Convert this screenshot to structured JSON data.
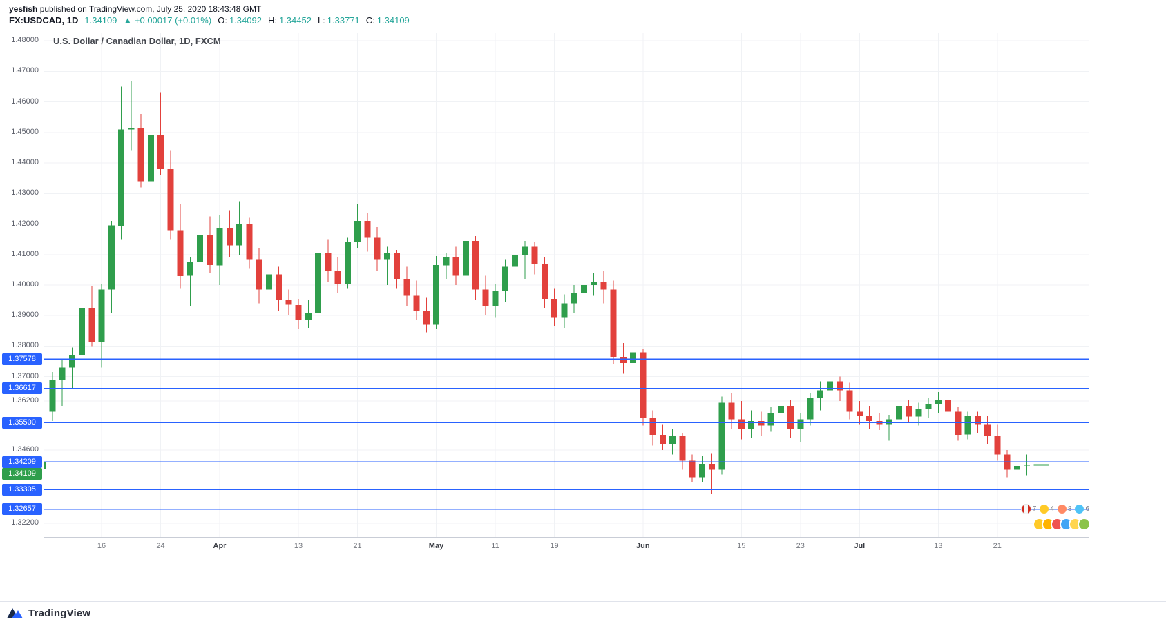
{
  "header": {
    "author": "yesfish",
    "published": " published on TradingView.com, July 25, 2020 18:43:48 GMT",
    "symbol": "FX:USDCAD, 1D",
    "last_price": "1.34109",
    "change": "▲ +0.00017 (+0.01%)",
    "ohlc": {
      "o_label": "O:",
      "o_value": "1.34092",
      "h_label": "H:",
      "h_value": "1.34452",
      "l_label": "L:",
      "l_value": "1.33771",
      "c_label": "C:",
      "c_value": "1.34109"
    }
  },
  "chart": {
    "title": "U.S. Dollar / Canadian Dollar, 1D, FXCM"
  },
  "chart_data": {
    "type": "candlestick",
    "symbol": "FX:USDCAD",
    "interval": "1D",
    "exchange": "FXCM",
    "title": "U.S. Dollar / Canadian Dollar, 1D, FXCM",
    "colors": {
      "up": "#2f9e4c",
      "down": "#e2413c",
      "level": "#2962ff",
      "level_label_bg": "#2962ff",
      "last_price_bg": "#2f9e4c",
      "grid": "#f0f2f5",
      "axis_text": "#5d606b"
    },
    "axis": {
      "price_top": 1.4825,
      "price_bottom": 1.3175,
      "grid": true
    },
    "y_labels": [
      {
        "label": "1.48000",
        "price": 1.48
      },
      {
        "label": "1.47000",
        "price": 1.47
      },
      {
        "label": "1.46000",
        "price": 1.46
      },
      {
        "label": "1.45000",
        "price": 1.45
      },
      {
        "label": "1.44000",
        "price": 1.44
      },
      {
        "label": "1.43000",
        "price": 1.43
      },
      {
        "label": "1.42000",
        "price": 1.42
      },
      {
        "label": "1.41000",
        "price": 1.41
      },
      {
        "label": "1.40000",
        "price": 1.4
      },
      {
        "label": "1.39000",
        "price": 1.39
      },
      {
        "label": "1.38000",
        "price": 1.38
      },
      {
        "label": "1.37000",
        "price": 1.37
      },
      {
        "label": "1.36200",
        "price": 1.362
      },
      {
        "label": "1.34600",
        "price": 1.346
      },
      {
        "label": "1.32200",
        "price": 1.322
      }
    ],
    "x_ticks": [
      {
        "index": 6,
        "label": "16"
      },
      {
        "index": 12,
        "label": "24"
      },
      {
        "index": 18,
        "label": "Apr",
        "month": true
      },
      {
        "index": 26,
        "label": "13"
      },
      {
        "index": 32,
        "label": "21"
      },
      {
        "index": 40,
        "label": "May",
        "month": true
      },
      {
        "index": 46,
        "label": "11"
      },
      {
        "index": 52,
        "label": "19"
      },
      {
        "index": 61,
        "label": "Jun",
        "month": true
      },
      {
        "index": 71,
        "label": "15"
      },
      {
        "index": 77,
        "label": "23"
      },
      {
        "index": 83,
        "label": "Jul",
        "month": true
      },
      {
        "index": 91,
        "label": "13"
      },
      {
        "index": 97,
        "label": "21"
      }
    ],
    "levels": [
      {
        "price": 1.37578,
        "label": "1.37578"
      },
      {
        "price": 1.36617,
        "label": "1.36617"
      },
      {
        "price": 1.355,
        "label": "1.35500"
      },
      {
        "price": 1.34209,
        "label": "1.34209"
      },
      {
        "price": 1.33305,
        "label": "1.33305"
      },
      {
        "price": 1.32657,
        "label": "1.32657"
      }
    ],
    "last_price": {
      "price": 1.34109,
      "label": "1.34109",
      "dy": 13
    },
    "candles": [
      [
        "2020-03-06",
        1.3398,
        1.3452,
        1.3365,
        1.3422
      ],
      [
        "2020-03-09",
        1.3585,
        1.3715,
        1.3555,
        1.369
      ],
      [
        "2020-03-10",
        1.369,
        1.3755,
        1.3605,
        1.373
      ],
      [
        "2020-03-11",
        1.373,
        1.3795,
        1.366,
        1.377
      ],
      [
        "2020-03-12",
        1.377,
        1.395,
        1.373,
        1.3925
      ],
      [
        "2020-03-13",
        1.3925,
        1.3995,
        1.38,
        1.3815
      ],
      [
        "2020-03-16",
        1.3815,
        1.4005,
        1.373,
        1.3985
      ],
      [
        "2020-03-17",
        1.3985,
        1.421,
        1.391,
        1.4195
      ],
      [
        "2020-03-18",
        1.4195,
        1.465,
        1.415,
        1.451
      ],
      [
        "2020-03-19",
        1.451,
        1.4668,
        1.444,
        1.4515
      ],
      [
        "2020-03-20",
        1.4515,
        1.456,
        1.432,
        1.434
      ],
      [
        "2020-03-23",
        1.434,
        1.453,
        1.43,
        1.449
      ],
      [
        "2020-03-24",
        1.449,
        1.463,
        1.436,
        1.438
      ],
      [
        "2020-03-25",
        1.438,
        1.444,
        1.415,
        1.418
      ],
      [
        "2020-03-26",
        1.418,
        1.4265,
        1.399,
        1.403
      ],
      [
        "2020-03-27",
        1.403,
        1.409,
        1.393,
        1.4075
      ],
      [
        "2020-03-30",
        1.4075,
        1.419,
        1.401,
        1.4165
      ],
      [
        "2020-03-31",
        1.4165,
        1.4225,
        1.404,
        1.4065
      ],
      [
        "2020-04-01",
        1.4065,
        1.423,
        1.4,
        1.4185
      ],
      [
        "2020-04-02",
        1.4185,
        1.4245,
        1.409,
        1.413
      ],
      [
        "2020-04-03",
        1.413,
        1.4275,
        1.41,
        1.42
      ],
      [
        "2020-04-06",
        1.42,
        1.422,
        1.4055,
        1.4085
      ],
      [
        "2020-04-07",
        1.4085,
        1.412,
        1.394,
        1.3985
      ],
      [
        "2020-04-08",
        1.3985,
        1.4075,
        1.3945,
        1.4035
      ],
      [
        "2020-04-09",
        1.4035,
        1.406,
        1.3915,
        1.395
      ],
      [
        "2020-04-10",
        1.395,
        1.3985,
        1.39,
        1.3935
      ],
      [
        "2020-04-13",
        1.3935,
        1.3955,
        1.3855,
        1.3885
      ],
      [
        "2020-04-14",
        1.3885,
        1.395,
        1.386,
        1.391
      ],
      [
        "2020-04-15",
        1.391,
        1.4125,
        1.3885,
        1.4105
      ],
      [
        "2020-04-16",
        1.4105,
        1.415,
        1.401,
        1.4045
      ],
      [
        "2020-04-17",
        1.4045,
        1.409,
        1.3975,
        1.4005
      ],
      [
        "2020-04-20",
        1.4005,
        1.4155,
        1.399,
        1.414
      ],
      [
        "2020-04-21",
        1.414,
        1.4265,
        1.412,
        1.421
      ],
      [
        "2020-04-22",
        1.421,
        1.4235,
        1.411,
        1.4155
      ],
      [
        "2020-04-23",
        1.4155,
        1.419,
        1.4045,
        1.4085
      ],
      [
        "2020-04-24",
        1.4085,
        1.4125,
        1.4,
        1.4105
      ],
      [
        "2020-04-27",
        1.4105,
        1.4115,
        1.399,
        1.402
      ],
      [
        "2020-04-28",
        1.402,
        1.406,
        1.393,
        1.3965
      ],
      [
        "2020-04-29",
        1.3965,
        1.4015,
        1.3885,
        1.3915
      ],
      [
        "2020-04-30",
        1.3915,
        1.396,
        1.3845,
        1.387
      ],
      [
        "2020-05-01",
        1.387,
        1.4095,
        1.3855,
        1.4065
      ],
      [
        "2020-05-04",
        1.4065,
        1.4105,
        1.402,
        1.409
      ],
      [
        "2020-05-05",
        1.409,
        1.4125,
        1.4,
        1.403
      ],
      [
        "2020-05-06",
        1.403,
        1.4175,
        1.4015,
        1.4145
      ],
      [
        "2020-05-07",
        1.4145,
        1.416,
        1.395,
        1.3985
      ],
      [
        "2020-05-08",
        1.3985,
        1.403,
        1.39,
        1.393
      ],
      [
        "2020-05-11",
        1.393,
        1.4005,
        1.3895,
        1.398
      ],
      [
        "2020-05-12",
        1.398,
        1.4085,
        1.3945,
        1.406
      ],
      [
        "2020-05-13",
        1.406,
        1.412,
        1.3995,
        1.41
      ],
      [
        "2020-05-14",
        1.41,
        1.4145,
        1.402,
        1.4125
      ],
      [
        "2020-05-15",
        1.4125,
        1.414,
        1.4035,
        1.407
      ],
      [
        "2020-05-18",
        1.407,
        1.409,
        1.3925,
        1.3955
      ],
      [
        "2020-05-19",
        1.3955,
        1.399,
        1.3865,
        1.3895
      ],
      [
        "2020-05-20",
        1.3895,
        1.397,
        1.386,
        1.394
      ],
      [
        "2020-05-21",
        1.394,
        1.4,
        1.391,
        1.3975
      ],
      [
        "2020-05-22",
        1.3975,
        1.405,
        1.3945,
        1.4
      ],
      [
        "2020-05-25",
        1.4,
        1.404,
        1.3965,
        1.401
      ],
      [
        "2020-05-26",
        1.401,
        1.4045,
        1.394,
        1.3985
      ],
      [
        "2020-05-27",
        1.3985,
        1.4015,
        1.374,
        1.3765
      ],
      [
        "2020-05-28",
        1.3765,
        1.381,
        1.371,
        1.3745
      ],
      [
        "2020-05-29",
        1.3745,
        1.38,
        1.372,
        1.378
      ],
      [
        "2020-06-01",
        1.378,
        1.379,
        1.354,
        1.3565
      ],
      [
        "2020-06-02",
        1.3565,
        1.359,
        1.3475,
        1.351
      ],
      [
        "2020-06-03",
        1.351,
        1.3545,
        1.346,
        1.348
      ],
      [
        "2020-06-04",
        1.348,
        1.353,
        1.3445,
        1.3505
      ],
      [
        "2020-06-05",
        1.3505,
        1.3515,
        1.3395,
        1.3425
      ],
      [
        "2020-06-08",
        1.3425,
        1.3445,
        1.3355,
        1.337
      ],
      [
        "2020-06-09",
        1.337,
        1.344,
        1.3355,
        1.3415
      ],
      [
        "2020-06-10",
        1.3415,
        1.345,
        1.3315,
        1.3395
      ],
      [
        "2020-06-11",
        1.3395,
        1.3635,
        1.338,
        1.3615
      ],
      [
        "2020-06-12",
        1.3615,
        1.3645,
        1.353,
        1.356
      ],
      [
        "2020-06-15",
        1.356,
        1.362,
        1.3495,
        1.353
      ],
      [
        "2020-06-16",
        1.353,
        1.359,
        1.35,
        1.3555
      ],
      [
        "2020-06-17",
        1.3555,
        1.3585,
        1.3505,
        1.354
      ],
      [
        "2020-06-18",
        1.354,
        1.36,
        1.352,
        1.358
      ],
      [
        "2020-06-19",
        1.358,
        1.363,
        1.3545,
        1.3605
      ],
      [
        "2020-06-22",
        1.3605,
        1.3625,
        1.35,
        1.353
      ],
      [
        "2020-06-23",
        1.353,
        1.358,
        1.3485,
        1.356
      ],
      [
        "2020-06-24",
        1.356,
        1.3645,
        1.354,
        1.363
      ],
      [
        "2020-06-25",
        1.363,
        1.3685,
        1.359,
        1.3655
      ],
      [
        "2020-06-26",
        1.3655,
        1.3715,
        1.363,
        1.3685
      ],
      [
        "2020-06-29",
        1.3685,
        1.37,
        1.362,
        1.3655
      ],
      [
        "2020-06-30",
        1.3655,
        1.368,
        1.356,
        1.3585
      ],
      [
        "2020-07-01",
        1.3585,
        1.362,
        1.3545,
        1.357
      ],
      [
        "2020-07-02",
        1.357,
        1.3605,
        1.353,
        1.3555
      ],
      [
        "2020-07-03",
        1.3555,
        1.358,
        1.3525,
        1.3545
      ],
      [
        "2020-07-06",
        1.3545,
        1.3575,
        1.349,
        1.356
      ],
      [
        "2020-07-07",
        1.356,
        1.362,
        1.3545,
        1.3605
      ],
      [
        "2020-07-08",
        1.3605,
        1.3625,
        1.355,
        1.357
      ],
      [
        "2020-07-09",
        1.357,
        1.3615,
        1.354,
        1.3595
      ],
      [
        "2020-07-10",
        1.3595,
        1.363,
        1.3565,
        1.361
      ],
      [
        "2020-07-13",
        1.361,
        1.365,
        1.358,
        1.3625
      ],
      [
        "2020-07-14",
        1.3625,
        1.3655,
        1.3565,
        1.3585
      ],
      [
        "2020-07-15",
        1.3585,
        1.36,
        1.349,
        1.351
      ],
      [
        "2020-07-16",
        1.351,
        1.3585,
        1.3495,
        1.357
      ],
      [
        "2020-07-17",
        1.357,
        1.3585,
        1.3515,
        1.3545
      ],
      [
        "2020-07-20",
        1.3545,
        1.357,
        1.348,
        1.3505
      ],
      [
        "2020-07-21",
        1.3505,
        1.3545,
        1.3425,
        1.3445
      ],
      [
        "2020-07-22",
        1.3445,
        1.346,
        1.337,
        1.3395
      ],
      [
        "2020-07-23",
        1.3395,
        1.343,
        1.3355,
        1.3408
      ],
      [
        "2020-07-24",
        1.34092,
        1.34452,
        1.33771,
        1.34109
      ]
    ]
  },
  "reactions": {
    "counts": [
      "7",
      "4",
      "8",
      "6"
    ]
  },
  "footer": {
    "brand": "TradingView"
  }
}
